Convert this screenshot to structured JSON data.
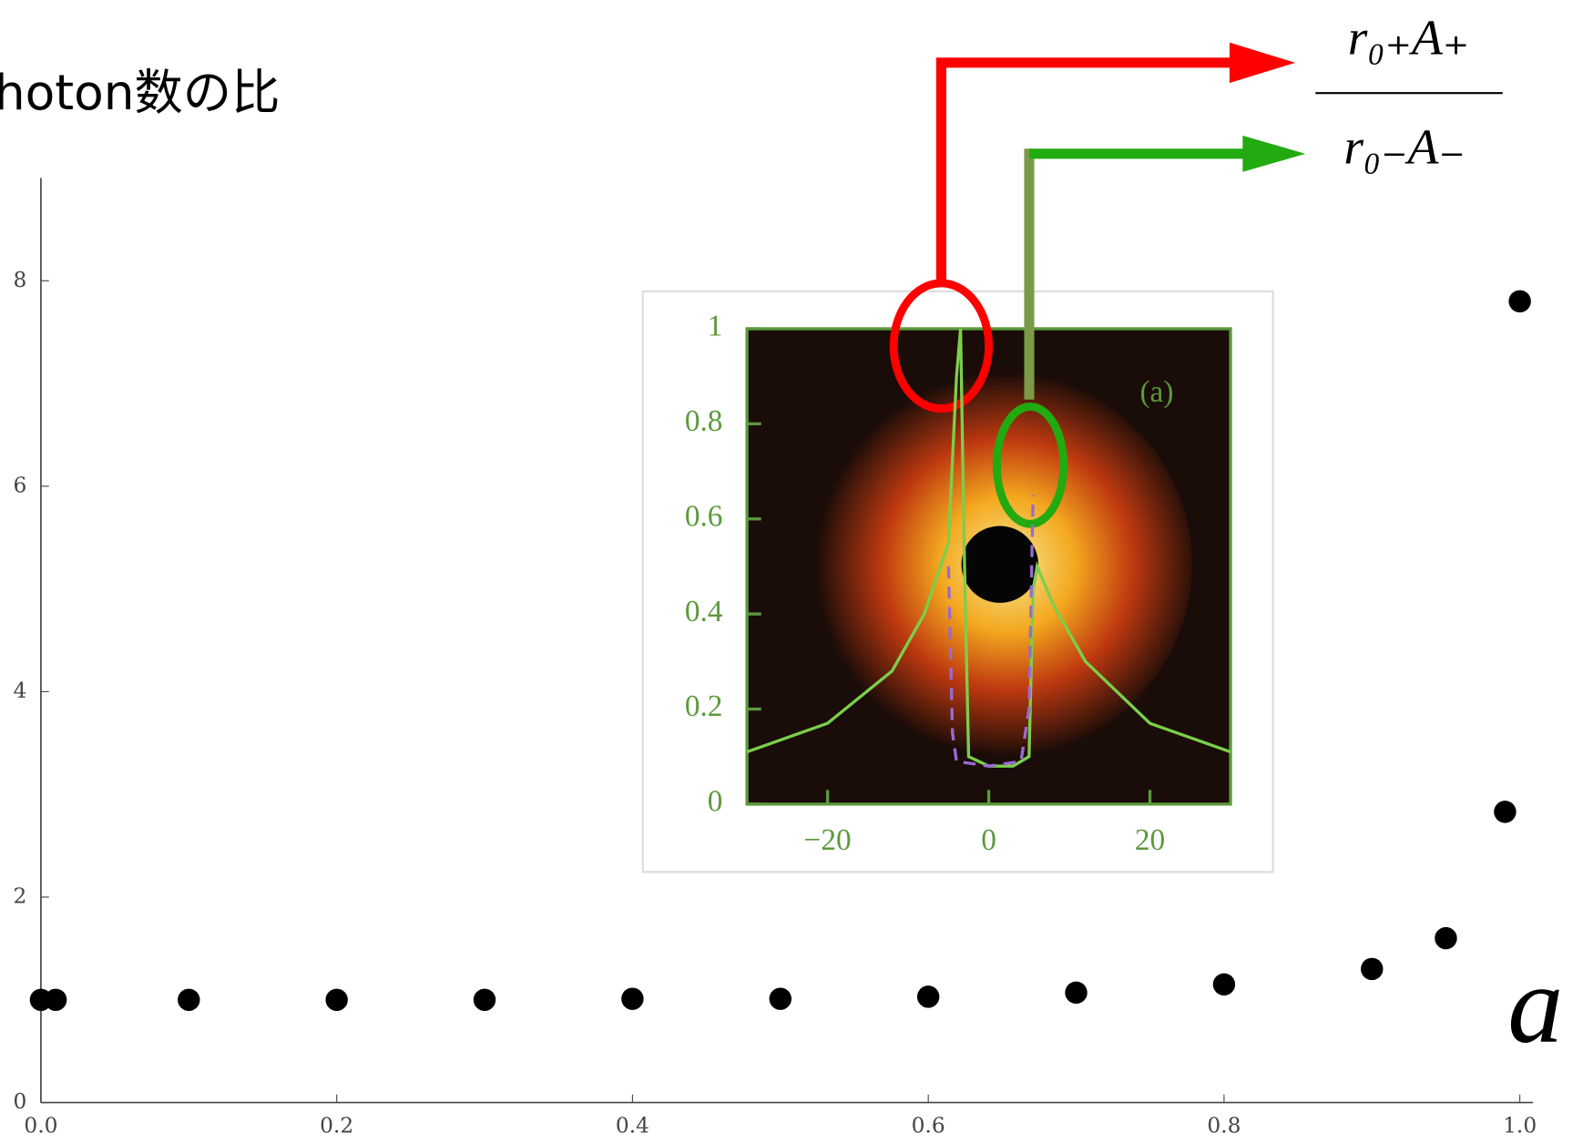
{
  "chart_data": [
    {
      "type": "scatter",
      "title": "hoton数の比",
      "xlabel": "a",
      "annotations": [
        "r₀₊A₊",
        "r₀₋A₋"
      ],
      "x": [
        0,
        0.01,
        0.1,
        0.2,
        0.3,
        0.4,
        0.5,
        0.6,
        0.7,
        0.8,
        0.9,
        0.95,
        0.99,
        1.0
      ],
      "values": [
        1.0,
        1.0,
        1.0,
        1.0,
        1.0,
        1.01,
        1.01,
        1.03,
        1.07,
        1.15,
        1.3,
        1.6,
        2.83,
        7.8
      ],
      "color": "#000000",
      "xlim": [
        0,
        1
      ],
      "ylim": [
        0,
        9
      ],
      "xticks": [
        {
          "value": 0,
          "label": "0.0"
        },
        0.2,
        0.4,
        0.6,
        0.8,
        {
          "value": 1,
          "label": "1.0"
        }
      ],
      "yticks": [
        0,
        2,
        4,
        6,
        8
      ]
    },
    {
      "type": "line",
      "annotation": "(a)",
      "series": [
        {
          "color": "#7ccf4a",
          "x": [
            -30,
            -20,
            -12,
            -8,
            -5,
            -4,
            -3.5,
            -3,
            -2.5,
            0,
            3,
            5,
            5.5,
            6,
            8,
            12,
            20,
            30
          ],
          "values": [
            0.11,
            0.17,
            0.28,
            0.4,
            0.55,
            0.9,
            1.0,
            0.5,
            0.1,
            0.08,
            0.08,
            0.1,
            0.45,
            0.5,
            0.42,
            0.3,
            0.17,
            0.11
          ]
        },
        {
          "color": "#9a6ad0",
          "dash": true,
          "x": [
            -5,
            -4.5,
            -4,
            0,
            4,
            5,
            5.5
          ],
          "values": [
            0.5,
            0.15,
            0.09,
            0.08,
            0.09,
            0.2,
            0.65
          ]
        }
      ],
      "xlim": [
        -30,
        30
      ],
      "ylim": [
        0,
        1
      ],
      "xticks": [
        {
          "value": -20,
          "label": "−20"
        },
        0,
        20
      ],
      "yticks": [
        0,
        0.2,
        0.4,
        0.6,
        0.8,
        1
      ]
    }
  ]
}
